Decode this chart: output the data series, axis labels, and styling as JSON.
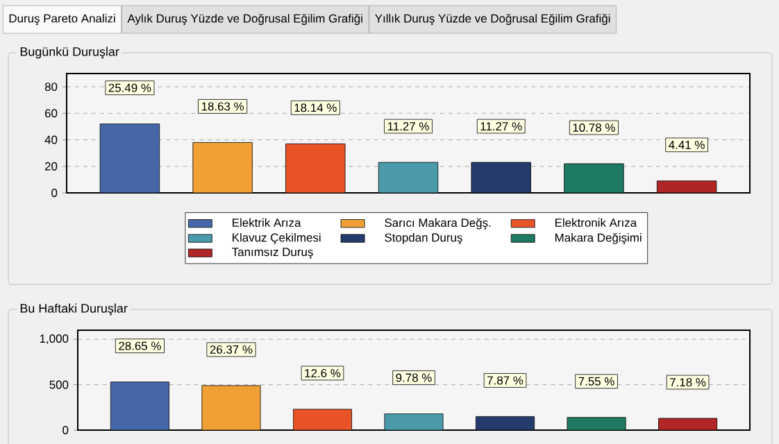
{
  "chart_data": [
    {
      "type": "bar",
      "title": "Bugünkü Duruşlar",
      "annotations": [
        "Duruş Pareto Analizi",
        "Aylık Duruş Yüzde ve Doğrusal Eğilim Grafiği",
        "Yıllık Duruş Yüzde ve Doğrusal Eğilim Grafiği",
        {
          "text": "25.49 %",
          "y": 52
        },
        {
          "text": "18.63 %",
          "y": 38
        },
        {
          "text": "18.14 %",
          "y": 37
        },
        {
          "text": "11.27 %",
          "y": 23
        },
        {
          "text": "11.27 %",
          "y": 23
        },
        {
          "text": "10.78 %",
          "y": 22
        },
        {
          "text": "4.41 %",
          "y": 9
        }
      ],
      "categories": [
        null,
        null,
        null,
        null,
        null,
        null,
        null
      ],
      "series": [
        {
          "name": "Elektrik Arıza",
          "color": "#4567a8",
          "values": [
            52,
            null,
            null,
            null,
            null,
            null,
            null
          ]
        },
        {
          "name": "Sarıcı Makara Değş.",
          "color": "#f0a035",
          "values": [
            null,
            38,
            null,
            null,
            null,
            null,
            null
          ]
        },
        {
          "name": "Elektronik Arıza",
          "color": "#e85428",
          "values": [
            null,
            null,
            37,
            null,
            null,
            null,
            null
          ]
        },
        {
          "name": "Klavuz Çekilmesi",
          "color": "#4a9aaa",
          "values": [
            null,
            null,
            null,
            23,
            null,
            null,
            null
          ]
        },
        {
          "name": "Stopdan Duruş",
          "color": "#243b6b",
          "values": [
            null,
            null,
            null,
            null,
            23,
            null,
            null
          ]
        },
        {
          "name": "Makara Değişimi",
          "color": "#1e7a62",
          "values": [
            null,
            null,
            null,
            null,
            null,
            22,
            null
          ]
        },
        {
          "name": "Tanımsız Duruş",
          "color": "#b02525",
          "values": [
            null,
            null,
            null,
            null,
            null,
            null,
            9
          ]
        }
      ],
      "ylim": [
        0,
        90
      ],
      "yticks": [
        0,
        20,
        40,
        60,
        80
      ],
      "grid": "y",
      "legend": "bottom",
      "tick_labels": "y"
    },
    {
      "type": "bar",
      "title": "Bu Haftaki Duruşlar",
      "annotations": [
        {
          "text": "28.65 %",
          "y": 530
        },
        {
          "text": "26.37 %",
          "y": 490
        },
        {
          "text": "12.6 %",
          "y": 230
        },
        {
          "text": "9.78 %",
          "y": 180
        },
        {
          "text": "7.87 %",
          "y": 150
        },
        {
          "text": "7.55 %",
          "y": 140
        },
        {
          "text": "7.18 %",
          "y": 130
        }
      ],
      "categories": [
        null,
        null,
        null,
        null,
        null,
        null,
        null
      ],
      "values": [
        530,
        490,
        230,
        180,
        150,
        140,
        130
      ],
      "colors": [
        "#4567a8",
        "#f0a035",
        "#e85428",
        "#4a9aaa",
        "#243b6b",
        "#1e7a62",
        "#b02525"
      ],
      "ylim": [
        0,
        1100
      ],
      "yticks": [
        0,
        500,
        {
          "value": 1000,
          "label": "1,000"
        }
      ],
      "grid": "y",
      "tick_labels": "y"
    }
  ]
}
